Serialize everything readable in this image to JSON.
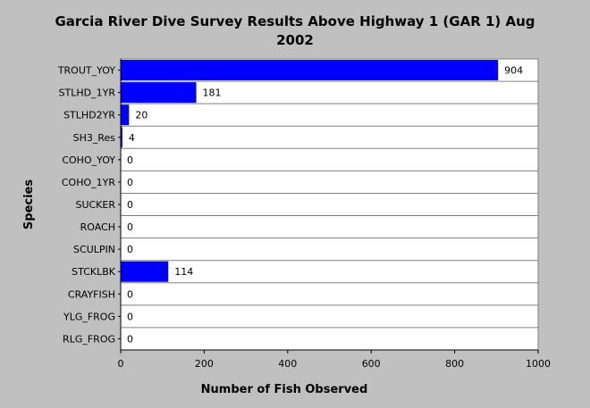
{
  "chart_data": {
    "type": "bar",
    "orientation": "horizontal",
    "title": "Garcia River Dive Survey Results Above Highway 1 (GAR 1) Aug 2002",
    "xlabel": "Number of Fish Observed",
    "ylabel": "Species",
    "xlim": [
      0,
      1000
    ],
    "xticks": [
      0,
      200,
      400,
      600,
      800,
      1000
    ],
    "grid": "horizontal lines between categories",
    "categories": [
      "TROUT_YOY",
      "STLHD_1YR",
      "STLHD2YR",
      "SH3_Res",
      "COHO_YOY",
      "COHO_1YR",
      "SUCKER",
      "ROACH",
      "SCULPIN",
      "STCKLBK",
      "CRAYFISH",
      "YLG_FROG",
      "RLG_FROG"
    ],
    "values": [
      904,
      181,
      20,
      4,
      0,
      0,
      0,
      0,
      0,
      114,
      0,
      0,
      0
    ],
    "colors": {
      "bar": "#0000ff",
      "plot_background": "#ffffff",
      "page_background": "#c0c0c0",
      "grid": "#808080"
    }
  }
}
